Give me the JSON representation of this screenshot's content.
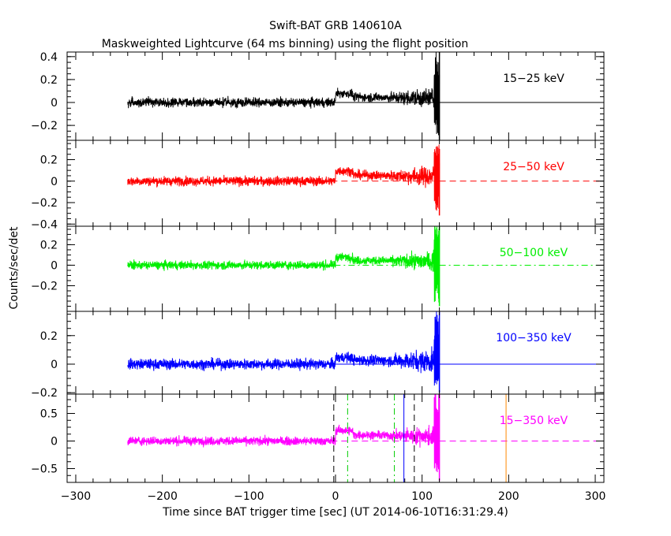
{
  "chart_data": {
    "type": "line",
    "title": "Swift-BAT GRB 140610A",
    "subtitle": "Maskweighted Lightcurve (64 ms binning) using the flight position",
    "xlabel": "Time since BAT trigger time [sec] (UT 2014-06-10T16:31:29.4)",
    "ylabel": "Counts/sec/det",
    "xlim": [
      -310,
      310
    ],
    "xticks": [
      -300,
      -200,
      -100,
      0,
      100,
      200,
      300
    ],
    "xtick_labels": [
      "−300",
      "−200",
      "−100",
      "0",
      "100",
      "200",
      "300"
    ],
    "data_range": [
      -240,
      120
    ],
    "grid": false,
    "panels": [
      {
        "name": "15−25 keV",
        "color": "#000000",
        "ylim": [
          -0.33,
          0.44
        ],
        "yticks": [
          -0.2,
          0,
          0.2,
          0.4
        ],
        "ytick_labels": [
          "−0.2",
          "0",
          "0.2",
          "0.4"
        ],
        "noise": 0.038,
        "baseline_before": 0.0,
        "baseline_after": 0.05,
        "spike_max": 0.44,
        "spike_min": -0.33,
        "zero_line": "solid"
      },
      {
        "name": "25−50 keV",
        "color": "#ff0000",
        "ylim": [
          -0.42,
          0.38
        ],
        "yticks": [
          -0.4,
          -0.2,
          0,
          0.2
        ],
        "ytick_labels": [
          "−0.4",
          "−0.2",
          "0",
          "0.2"
        ],
        "noise": 0.042,
        "baseline_before": 0.0,
        "baseline_after": 0.06,
        "spike_max": 0.3,
        "spike_min": -0.32,
        "zero_line": "dashed"
      },
      {
        "name": "50−100 keV",
        "color": "#00ee00",
        "ylim": [
          -0.45,
          0.38
        ],
        "yticks": [
          -0.2,
          0,
          0.2
        ],
        "ytick_labels": [
          "−0.2",
          "0",
          "0.2"
        ],
        "noise": 0.04,
        "baseline_before": 0.0,
        "baseline_after": 0.05,
        "spike_max": 0.38,
        "spike_min": -0.4,
        "zero_line": "dashdot"
      },
      {
        "name": "100−350 keV",
        "color": "#0000ff",
        "ylim": [
          -0.21,
          0.37
        ],
        "yticks": [
          -0.2,
          0,
          0.2
        ],
        "ytick_labels": [
          "−0.2",
          "0",
          "0.2"
        ],
        "noise": 0.036,
        "baseline_before": 0.0,
        "baseline_after": 0.03,
        "spike_max": 0.37,
        "spike_min": -0.2,
        "zero_line": "solid"
      },
      {
        "name": "15−350 keV",
        "color": "#ff00ff",
        "ylim": [
          -0.75,
          0.85
        ],
        "yticks": [
          -0.5,
          0,
          0.5
        ],
        "ytick_labels": [
          "−0.5",
          "0",
          "0.5"
        ],
        "noise": 0.075,
        "baseline_before": 0.0,
        "baseline_after": 0.12,
        "spike_max": 0.85,
        "spike_min": -0.72,
        "zero_line": "dashed"
      }
    ],
    "markers": [
      {
        "x": -2,
        "color": "#000000",
        "style": "dashed"
      },
      {
        "x": 14,
        "color": "#00cc00",
        "style": "dashdot"
      },
      {
        "x": 68,
        "color": "#00cc00",
        "style": "dashdot"
      },
      {
        "x": 79,
        "color": "#0000ff",
        "style": "solid"
      },
      {
        "x": 91,
        "color": "#000000",
        "style": "dashed"
      },
      {
        "x": 197,
        "color": "#ff8800",
        "style": "solid"
      }
    ]
  }
}
